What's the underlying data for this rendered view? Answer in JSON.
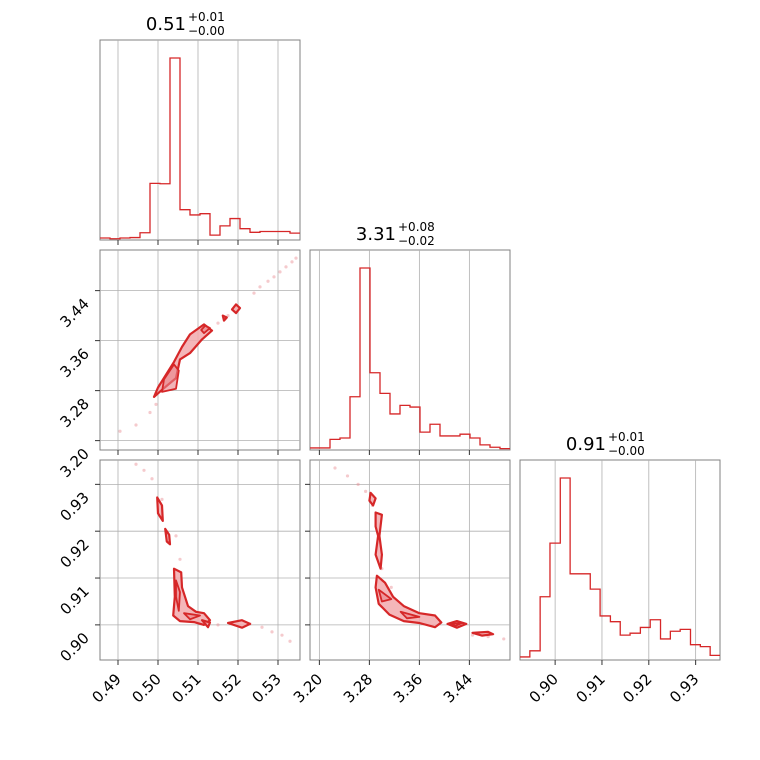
{
  "chart_data": {
    "type": "corner",
    "colors": {
      "series": "#d62728",
      "fill": "#f2a9ad",
      "grid": "#b0b0b0",
      "frame": "#808080"
    },
    "parameters": [
      {
        "index": 0,
        "title_value": "0.51",
        "title_plus": "+0.01",
        "title_minus": "−0.00",
        "range": [
          0.4855,
          0.5355
        ],
        "ticks": [
          0.49,
          0.5,
          0.51,
          0.52,
          0.53
        ],
        "tick_labels": [
          "0.49",
          "0.50",
          "0.51",
          "0.52",
          "0.53"
        ]
      },
      {
        "index": 1,
        "title_value": "3.31",
        "title_plus": "+0.08",
        "title_minus": "−0.02",
        "range": [
          3.185,
          3.505
        ],
        "ticks": [
          3.2,
          3.28,
          3.36,
          3.44
        ],
        "tick_labels": [
          "3.20",
          "3.28",
          "3.36",
          "3.44"
        ]
      },
      {
        "index": 2,
        "title_value": "0.91",
        "title_plus": "+0.01",
        "title_minus": "−0.00",
        "range": [
          0.8925,
          0.9352
        ],
        "ticks": [
          0.9,
          0.91,
          0.92,
          0.93
        ],
        "tick_labels": [
          "0.90",
          "0.91",
          "0.92",
          "0.93"
        ]
      }
    ],
    "histograms": [
      {
        "param": 0,
        "bin_edges": [
          0.4855,
          0.488,
          0.4905,
          0.493,
          0.4955,
          0.498,
          0.5005,
          0.503,
          0.5055,
          0.508,
          0.5105,
          0.513,
          0.5155,
          0.518,
          0.5205,
          0.523,
          0.5255,
          0.528,
          0.5305,
          0.533,
          0.5355
        ],
        "counts": [
          0.5,
          0.3,
          0.5,
          0.6,
          1.8,
          14,
          13.9,
          45,
          7.5,
          6.2,
          6.5,
          1.2,
          3.5,
          5.3,
          2.8,
          1.9,
          2.1,
          2.1,
          2.1,
          1.7
        ]
      },
      {
        "param": 1,
        "bin_edges": [
          3.185,
          3.201,
          3.217,
          3.233,
          3.249,
          3.265,
          3.281,
          3.297,
          3.313,
          3.329,
          3.345,
          3.361,
          3.377,
          3.393,
          3.409,
          3.425,
          3.441,
          3.457,
          3.473,
          3.489,
          3.505
        ],
        "counts": [
          0.6,
          0.6,
          3.1,
          3.5,
          15.5,
          53,
          22.5,
          16.5,
          10.5,
          13,
          12.5,
          5.2,
          7.5,
          4.1,
          4.1,
          4.6,
          3.5,
          1.5,
          0.8,
          0.4
        ]
      },
      {
        "param": 2,
        "bin_edges": [
          0.8925,
          0.8946,
          0.8968,
          0.8989,
          0.9011,
          0.9032,
          0.9053,
          0.9075,
          0.9096,
          0.9118,
          0.9139,
          0.916,
          0.9182,
          0.9203,
          0.9225,
          0.9246,
          0.9267,
          0.9289,
          0.931,
          0.9331,
          0.9352
        ],
        "counts": [
          0.8,
          2.4,
          16.5,
          30.5,
          47.5,
          22.5,
          22.5,
          18.5,
          11.5,
          10,
          6.5,
          7,
          8.5,
          10.5,
          5.5,
          7.5,
          8,
          4,
          3.5,
          1.2
        ]
      }
    ],
    "pairs": [
      {
        "x_param": 0,
        "y_param": 1,
        "samples": [
          [
            0.4905,
            3.215
          ],
          [
            0.4945,
            3.225
          ],
          [
            0.498,
            3.245
          ],
          [
            0.4995,
            3.258
          ],
          [
            0.5275,
            3.455
          ],
          [
            0.529,
            3.462
          ],
          [
            0.5305,
            3.47
          ],
          [
            0.532,
            3.478
          ],
          [
            0.5335,
            3.486
          ],
          [
            0.5345,
            3.492
          ],
          [
            0.524,
            3.436
          ],
          [
            0.5255,
            3.446
          ],
          [
            0.5175,
            3.4
          ],
          [
            0.515,
            3.388
          ]
        ],
        "outer_contours": [
          [
            [
              0.499,
              3.27
            ],
            [
              0.5015,
              3.284
            ],
            [
              0.5045,
              3.3
            ],
            [
              0.5055,
              3.33
            ],
            [
              0.508,
              3.34
            ],
            [
              0.511,
              3.362
            ],
            [
              0.5135,
              3.376
            ],
            [
              0.5115,
              3.386
            ],
            [
              0.508,
              3.37
            ],
            [
              0.506,
              3.35
            ],
            [
              0.504,
              3.326
            ],
            [
              0.5,
              3.285
            ]
          ],
          [
            [
              0.5195,
              3.404
            ],
            [
              0.5205,
              3.412
            ],
            [
              0.5195,
              3.418
            ],
            [
              0.5185,
              3.41
            ]
          ],
          [
            [
              0.5165,
              3.392
            ],
            [
              0.5172,
              3.397
            ],
            [
              0.5162,
              3.4
            ]
          ]
        ],
        "inner_contours": [
          [
            [
              0.501,
              3.278
            ],
            [
              0.5045,
              3.283
            ],
            [
              0.5052,
              3.312
            ],
            [
              0.504,
              3.322
            ],
            [
              0.5015,
              3.298
            ]
          ],
          [
            [
              0.5115,
              3.372
            ],
            [
              0.513,
              3.38
            ],
            [
              0.5118,
              3.384
            ],
            [
              0.5108,
              3.377
            ]
          ]
        ]
      },
      {
        "x_param": 0,
        "y_param": 2,
        "samples": [
          [
            0.4945,
            0.9343
          ],
          [
            0.4965,
            0.933
          ],
          [
            0.4985,
            0.9312
          ],
          [
            0.501,
            0.9268
          ],
          [
            0.5045,
            0.919
          ],
          [
            0.5055,
            0.914
          ],
          [
            0.515,
            0.9
          ],
          [
            0.523,
            0.9002
          ],
          [
            0.526,
            0.8995
          ],
          [
            0.5285,
            0.8985
          ],
          [
            0.531,
            0.8978
          ],
          [
            0.533,
            0.8965
          ]
        ],
        "outer_contours": [
          [
            [
              0.4998,
              0.9272
            ],
            [
              0.501,
              0.9255
            ],
            [
              0.5012,
              0.9222
            ],
            [
              0.5,
              0.9238
            ]
          ],
          [
            [
              0.5018,
              0.9205
            ],
            [
              0.5028,
              0.9192
            ],
            [
              0.503,
              0.9172
            ],
            [
              0.5022,
              0.9178
            ]
          ],
          [
            [
              0.504,
              0.912
            ],
            [
              0.5058,
              0.9112
            ],
            [
              0.506,
              0.908
            ],
            [
              0.5075,
              0.904
            ],
            [
              0.5095,
              0.9028
            ],
            [
              0.5115,
              0.9025
            ],
            [
              0.513,
              0.901
            ],
            [
              0.5115,
              0.9
            ],
            [
              0.509,
              0.9006
            ],
            [
              0.5055,
              0.9008
            ],
            [
              0.5038,
              0.902
            ],
            [
              0.5042,
              0.906
            ]
          ],
          [
            [
              0.5175,
              0.9004
            ],
            [
              0.521,
              0.901
            ],
            [
              0.523,
              0.9002
            ],
            [
              0.521,
              0.8994
            ]
          ],
          [
            [
              0.511,
              0.901
            ],
            [
              0.513,
              0.9005
            ],
            [
              0.5125,
              0.8995
            ]
          ]
        ],
        "inner_contours": [
          [
            [
              0.5045,
              0.9095
            ],
            [
              0.5055,
              0.907
            ],
            [
              0.5052,
              0.903
            ],
            [
              0.5045,
              0.906
            ]
          ],
          [
            [
              0.5065,
              0.9025
            ],
            [
              0.5105,
              0.902
            ],
            [
              0.508,
              0.9012
            ]
          ]
        ]
      },
      {
        "x_param": 1,
        "y_param": 2,
        "samples": [
          [
            3.225,
            0.9335
          ],
          [
            3.245,
            0.9318
          ],
          [
            3.262,
            0.93
          ],
          [
            3.274,
            0.9285
          ],
          [
            3.285,
            0.9255
          ],
          [
            3.3,
            0.912
          ],
          [
            3.315,
            0.908
          ],
          [
            3.445,
            0.8978
          ],
          [
            3.47,
            0.8975
          ],
          [
            3.495,
            0.897
          ]
        ],
        "outer_contours": [
          [
            [
              3.282,
              0.9282
            ],
            [
              3.29,
              0.927
            ],
            [
              3.286,
              0.9255
            ],
            [
              3.28,
              0.9265
            ]
          ],
          [
            [
              3.29,
              0.924
            ],
            [
              3.3,
              0.9235
            ],
            [
              3.296,
              0.919
            ],
            [
              3.3,
              0.915
            ],
            [
              3.298,
              0.912
            ],
            [
              3.29,
              0.915
            ],
            [
              3.294,
              0.919
            ],
            [
              3.29,
              0.921
            ]
          ],
          [
            [
              3.292,
              0.9105
            ],
            [
              3.305,
              0.909
            ],
            [
              3.318,
              0.906
            ],
            [
              3.335,
              0.904
            ],
            [
              3.36,
              0.9025
            ],
            [
              3.385,
              0.902
            ],
            [
              3.395,
              0.9005
            ],
            [
              3.385,
              0.8995
            ],
            [
              3.36,
              0.9004
            ],
            [
              3.335,
              0.9008
            ],
            [
              3.312,
              0.9022
            ],
            [
              3.295,
              0.9045
            ],
            [
              3.29,
              0.908
            ]
          ],
          [
            [
              3.405,
              0.9002
            ],
            [
              3.42,
              0.9008
            ],
            [
              3.435,
              0.9002
            ],
            [
              3.42,
              0.8994
            ]
          ],
          [
            [
              3.445,
              0.8983
            ],
            [
              3.47,
              0.8985
            ],
            [
              3.478,
              0.898
            ],
            [
              3.46,
              0.8977
            ]
          ]
        ],
        "inner_contours": [
          [
            [
              3.295,
              0.9075
            ],
            [
              3.315,
              0.9055
            ],
            [
              3.3,
              0.905
            ]
          ],
          [
            [
              3.33,
              0.9028
            ],
            [
              3.36,
              0.9017
            ],
            [
              3.34,
              0.9014
            ]
          ],
          [
            [
              3.41,
              0.9002
            ],
            [
              3.428,
              0.9004
            ],
            [
              3.418,
              0.8998
            ]
          ]
        ]
      }
    ]
  }
}
